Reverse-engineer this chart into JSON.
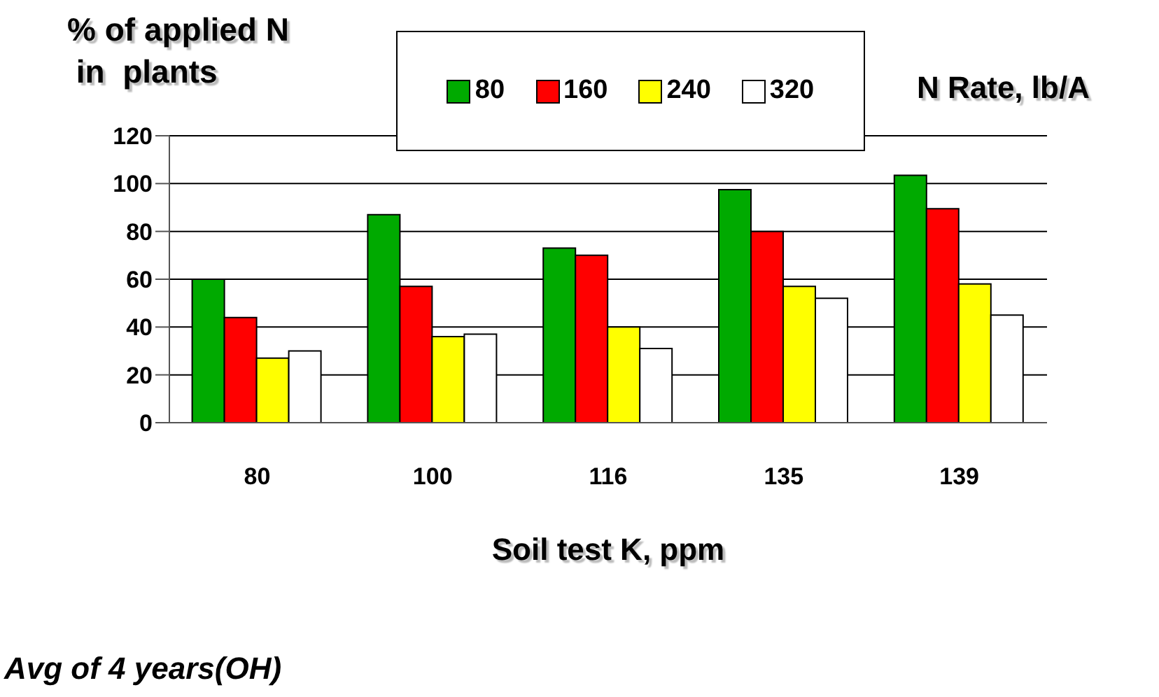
{
  "chart_data": {
    "type": "bar",
    "ylabel": "% of applied N\n in  plants",
    "xlabel": "Soil test K, ppm",
    "legend_title": "N Rate, lb/A",
    "categories": [
      "80",
      "100",
      "116",
      "135",
      "139"
    ],
    "series": [
      {
        "name": "80",
        "color": "#00aa00",
        "values": [
          60,
          87,
          73,
          97.5,
          103.5
        ]
      },
      {
        "name": "160",
        "color": "#ff0000",
        "values": [
          44,
          57,
          70,
          80,
          89.5
        ]
      },
      {
        "name": "240",
        "color": "#ffff00",
        "values": [
          27,
          36,
          40,
          57,
          58
        ]
      },
      {
        "name": "320",
        "color": "#ffffff",
        "values": [
          30,
          37,
          31,
          52,
          45
        ]
      }
    ],
    "ylim": [
      0,
      120
    ],
    "yticks": [
      0,
      20,
      40,
      60,
      80,
      100,
      120
    ],
    "grid": "y",
    "legend": "top",
    "annotations": [
      "Avg of 4 years(OH)"
    ]
  }
}
